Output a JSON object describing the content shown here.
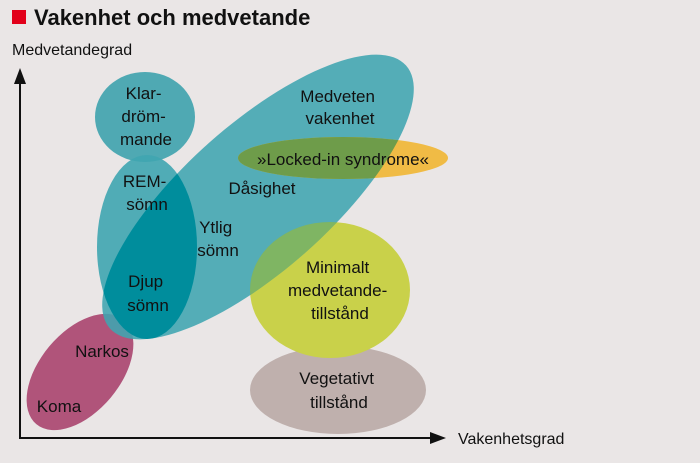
{
  "title": "Vakenhet och medvetande",
  "y_axis_label": "Medvetandegrad",
  "x_axis_label": "Vakenhetsgrad",
  "colors": {
    "title_square": "#e2001a",
    "teal": "#3fa5b0",
    "dark_teal": "#008d9c",
    "green_overlap": "#6e9c4a",
    "yellow": "#f0bb45",
    "yellow_green": "#c9d14a",
    "pink": "#b0547a",
    "taupe": "#bfb0ad",
    "background": "#eae6e6"
  },
  "regions": {
    "klardrommande": [
      "Klar-",
      "dröm-",
      "mande"
    ],
    "medveten_vakenhet": [
      "Medveten",
      "vakenhet"
    ],
    "locked_in": [
      "»Locked-in syndrome«"
    ],
    "dasighet": [
      "Dåsighet"
    ],
    "rem_somn": [
      "REM-",
      "sömn"
    ],
    "ytlig_somn": [
      "Ytlig",
      "sömn"
    ],
    "djup_somn": [
      "Djup",
      "sömn"
    ],
    "minimalt_medvetande": [
      "Minimalt",
      "medvetande-",
      "tillstånd"
    ],
    "narkos": [
      "Narkos"
    ],
    "koma": [
      "Koma"
    ],
    "vegetativt": [
      "Vegetativt",
      "tillstånd"
    ]
  }
}
